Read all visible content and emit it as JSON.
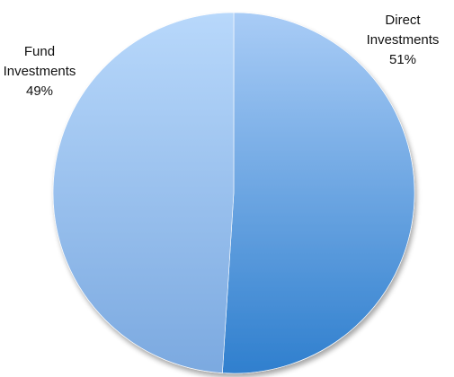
{
  "chart_data": {
    "type": "pie",
    "title": "",
    "slices": [
      {
        "label_lines": [
          "Direct",
          "Investments"
        ],
        "value": 51,
        "value_label": "51%",
        "color_light": "#a9ccf6",
        "color_dark": "#2f7fce"
      },
      {
        "label_lines": [
          "Fund",
          "Investments"
        ],
        "value": 49,
        "value_label": "49%",
        "color_light": "#b8d8fb",
        "color_dark": "#7ba9e0"
      }
    ],
    "start_angle_deg": 0,
    "direction": "clockwise",
    "legend": "none"
  }
}
